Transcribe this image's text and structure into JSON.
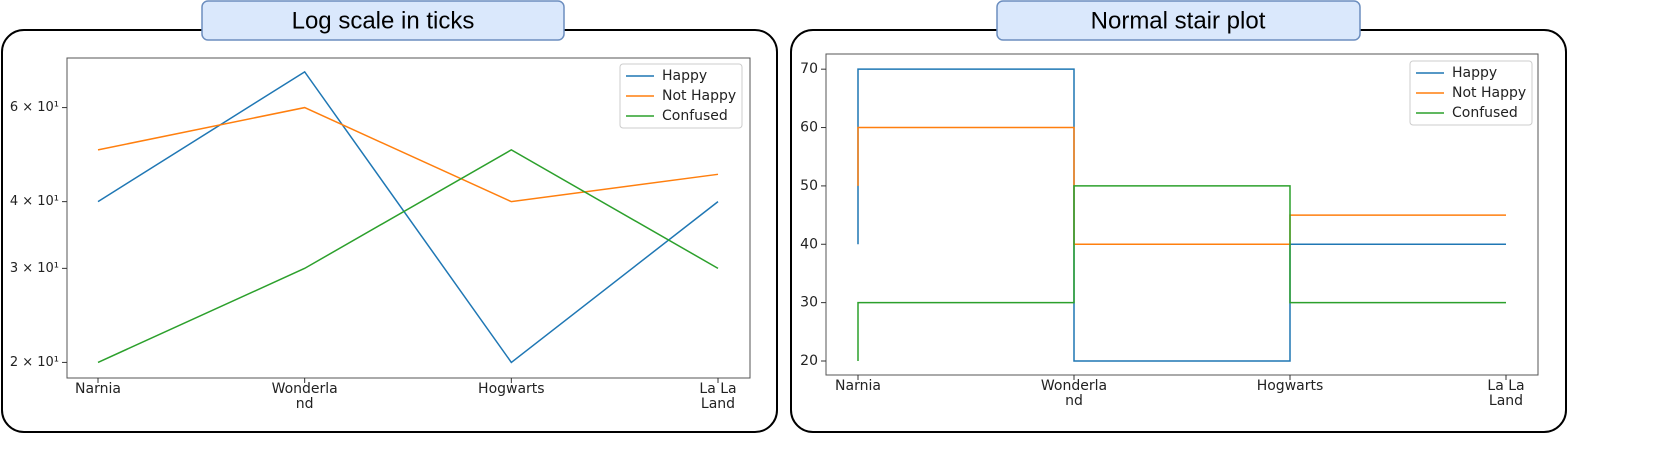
{
  "chart_data": [
    {
      "type": "line",
      "title": "Log scale in ticks",
      "log_scale": true,
      "legend": "upper right",
      "categories": [
        "Narnia",
        "Wonderland",
        "Hogwarts",
        "La La Land"
      ],
      "series": [
        {
          "name": "Happy",
          "color": "#1f77b4",
          "values": [
            40,
            70,
            20,
            40
          ]
        },
        {
          "name": "Not Happy",
          "color": "#ff7f0e",
          "values": [
            50,
            60,
            40,
            45
          ]
        },
        {
          "name": "Confused",
          "color": "#2ca02c",
          "values": [
            20,
            30,
            50,
            30
          ]
        }
      ],
      "ylim": [
        18.7,
        74.3
      ],
      "yticks": [
        {
          "value": 20,
          "label": "2 × 10¹"
        },
        {
          "value": 30,
          "label": "3 × 10¹"
        },
        {
          "value": 40,
          "label": "4 × 10¹"
        },
        {
          "value": 60,
          "label": "6 × 10¹"
        }
      ]
    },
    {
      "type": "step",
      "title": "Normal stair plot",
      "log_scale": false,
      "legend": "upper right",
      "categories": [
        "Narnia",
        "Wonderland",
        "Hogwarts",
        "La La Land"
      ],
      "series": [
        {
          "name": "Happy",
          "color": "#1f77b4",
          "values": [
            40,
            70,
            20,
            40
          ]
        },
        {
          "name": "Not Happy",
          "color": "#ff7f0e",
          "values": [
            50,
            60,
            40,
            45
          ]
        },
        {
          "name": "Confused",
          "color": "#2ca02c",
          "values": [
            20,
            30,
            50,
            30
          ]
        }
      ],
      "ylim": [
        17.6,
        72.6
      ],
      "yticks": [
        20,
        30,
        40,
        50,
        60,
        70
      ]
    }
  ]
}
